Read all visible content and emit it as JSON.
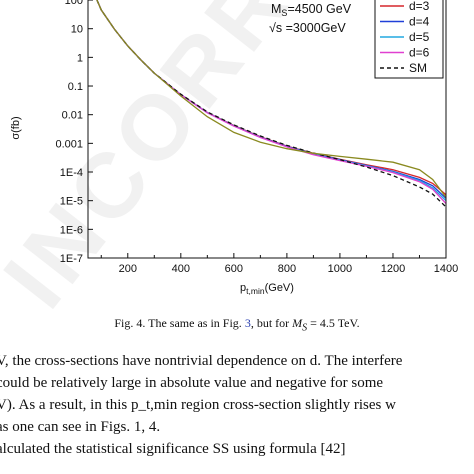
{
  "chart_data": {
    "type": "line",
    "xlabel": "p_t,min(GeV)",
    "xlabel_main": "p",
    "xlabel_sub": "t,min",
    "xlabel_unit": "(GeV)",
    "ylabel": "σ(fb)",
    "x_ticks": [
      200,
      400,
      600,
      800,
      1000,
      1200,
      1400
    ],
    "y_ticks": [
      "100",
      "10",
      "1",
      "0.1",
      "0.01",
      "0.001",
      "1E-4",
      "1E-5",
      "1E-6",
      "1E-7"
    ],
    "xlim": [
      50,
      1400
    ],
    "ylim_log10": [
      -7,
      2.35
    ],
    "y_scale": "log",
    "annotations": {
      "ms_prefix": "M",
      "ms_sub": "S",
      "ms_value": "=4500 GeV",
      "sqrt_s": "√s =3000GeV"
    },
    "legend_position": "top-right",
    "series": [
      {
        "name": "d=3",
        "color": "#d6262b",
        "style": "solid",
        "x": [
          60,
          80,
          100,
          150,
          200,
          250,
          300,
          400,
          500,
          600,
          700,
          800,
          900,
          1000,
          1100,
          1200,
          1300,
          1350,
          1400
        ],
        "y": [
          500,
          120,
          45,
          9.5,
          2.5,
          0.8,
          0.28,
          0.05,
          0.012,
          0.0042,
          0.0017,
          0.0008,
          0.00045,
          0.00028,
          0.00018,
          0.00012,
          6.5e-05,
          4e-05,
          1.6e-05
        ]
      },
      {
        "name": "d=4",
        "color": "#2040d8",
        "style": "solid",
        "x": [
          60,
          80,
          100,
          150,
          200,
          250,
          300,
          400,
          500,
          600,
          700,
          800,
          900,
          1000,
          1100,
          1200,
          1300,
          1350,
          1400
        ],
        "y": [
          500,
          120,
          45,
          9.5,
          2.5,
          0.8,
          0.28,
          0.05,
          0.0118,
          0.0041,
          0.00165,
          0.00078,
          0.00044,
          0.00027,
          0.00017,
          0.000105,
          5.5e-05,
          3.3e-05,
          1.2e-05
        ]
      },
      {
        "name": "d=5",
        "color": "#22a8e0",
        "style": "solid",
        "x": [
          60,
          80,
          100,
          150,
          200,
          250,
          300,
          400,
          500,
          600,
          700,
          800,
          900,
          1000,
          1100,
          1200,
          1300,
          1350,
          1400
        ],
        "y": [
          500,
          120,
          45,
          9.5,
          2.5,
          0.8,
          0.28,
          0.05,
          0.0117,
          0.0041,
          0.00163,
          0.00076,
          0.00042,
          0.00026,
          0.000165,
          0.0001,
          5e-05,
          2.8e-05,
          1e-05
        ]
      },
      {
        "name": "d=6",
        "color": "#e040d0",
        "style": "solid",
        "x": [
          60,
          80,
          100,
          150,
          200,
          250,
          300,
          400,
          500,
          600,
          700,
          800,
          900,
          1000,
          1100,
          1200,
          1300,
          1350,
          1400
        ],
        "y": [
          500,
          120,
          45,
          9.5,
          2.5,
          0.8,
          0.28,
          0.05,
          0.0116,
          0.004,
          0.0016,
          0.00075,
          0.0004,
          0.00025,
          0.00016,
          9.5e-05,
          4.6e-05,
          2.5e-05,
          8e-06
        ]
      },
      {
        "name": "SM",
        "color": "#111111",
        "style": "dashed",
        "x": [
          60,
          80,
          100,
          150,
          200,
          250,
          300,
          400,
          500,
          600,
          700,
          800,
          900,
          1000,
          1100,
          1200,
          1300,
          1350,
          1400
        ],
        "y": [
          500,
          120,
          45,
          9.5,
          2.5,
          0.8,
          0.28,
          0.052,
          0.0125,
          0.0044,
          0.0018,
          0.00085,
          0.00046,
          0.00027,
          0.00015,
          7.5e-05,
          3e-05,
          1.7e-05,
          6e-06
        ]
      },
      {
        "name": "",
        "color": "#8a8a20",
        "style": "solid",
        "x": [
          60,
          80,
          100,
          150,
          200,
          250,
          300,
          400,
          500,
          600,
          700,
          800,
          900,
          1000,
          1100,
          1200,
          1300,
          1350,
          1400
        ],
        "y": [
          500,
          120,
          45,
          9.5,
          2.5,
          0.8,
          0.28,
          0.045,
          0.0085,
          0.0024,
          0.0011,
          0.00065,
          0.00045,
          0.00035,
          0.00028,
          0.00022,
          0.00012,
          5.5e-05,
          1.3e-05
        ]
      }
    ]
  },
  "caption": "Fig. 4. The same as in Fig. 3, but for M_S = 4.5 TeV.",
  "caption_parts": {
    "pre": "Fig. 4. The same as in Fig. ",
    "ref": "3",
    "mid": ", but for ",
    "m": "M",
    "s": "S",
    "post": " = 4.5 TeV."
  },
  "body_lines": [
    "V, the cross-sections have nontrivial dependence on d. The interfere",
    "could be relatively large in absolute value and negative for some",
    "V). As a result, in this p_t,min region cross-section slightly rises w",
    "as one can see in Figs. 1, 4.",
    "alculated the statistical significance SS using formula [42]"
  ],
  "watermark": "INCORRECT"
}
